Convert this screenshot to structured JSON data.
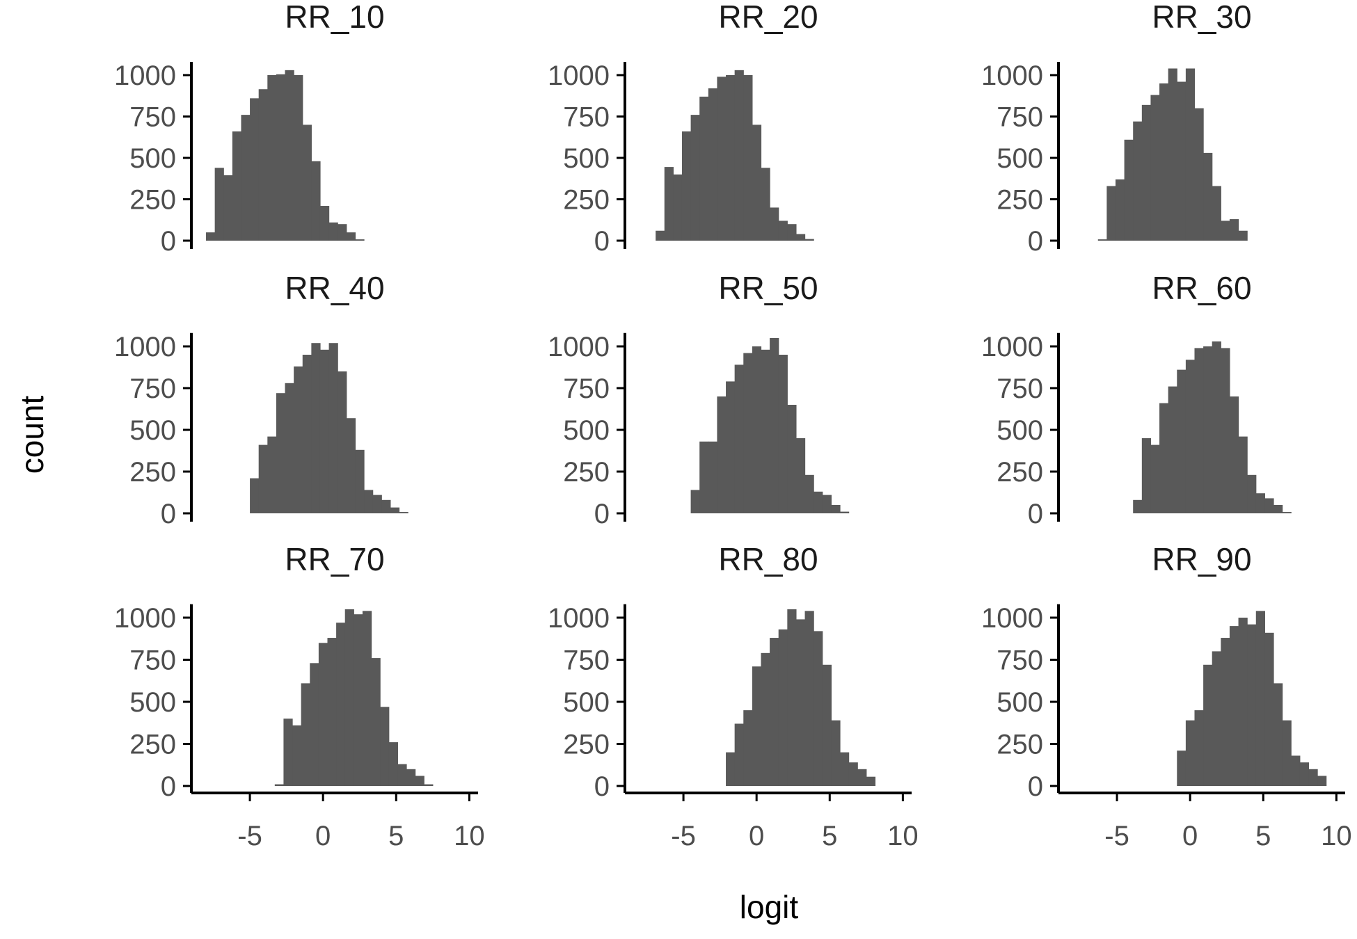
{
  "chart_data": {
    "type": "bar",
    "subtype": "faceted-histogram",
    "xlabel": "logit",
    "ylabel": "count",
    "bar_color": "#595959",
    "bin_width": 0.6,
    "y_ticks": [
      0,
      250,
      500,
      750,
      1000
    ],
    "y_tick_labels": [
      "0",
      "250",
      "500",
      "750",
      "1000"
    ],
    "x_ticks": [
      -5,
      0,
      5,
      10
    ],
    "x_tick_labels": [
      "-5",
      "0",
      "5",
      "10"
    ],
    "xlim": [
      -9,
      10.6
    ],
    "ylim": [
      0,
      1080
    ],
    "layout": {
      "nrow": 3,
      "ncol": 3
    },
    "panels": [
      {
        "title": "RR_10",
        "bin_start": -8.0,
        "counts": [
          50,
          440,
          395,
          660,
          760,
          860,
          915,
          1000,
          1005,
          1030,
          1000,
          700,
          480,
          210,
          110,
          100,
          50,
          8
        ]
      },
      {
        "title": "RR_20",
        "bin_start": -6.9,
        "counts": [
          60,
          445,
          400,
          660,
          760,
          870,
          920,
          990,
          1000,
          1030,
          1000,
          700,
          440,
          200,
          120,
          100,
          40,
          10
        ]
      },
      {
        "title": "RR_30",
        "bin_start": -6.3,
        "counts": [
          8,
          330,
          370,
          610,
          720,
          820,
          880,
          950,
          1040,
          960,
          1040,
          800,
          530,
          330,
          120,
          130,
          60
        ]
      },
      {
        "title": "RR_40",
        "bin_start": -5.0,
        "counts": [
          210,
          410,
          460,
          720,
          780,
          880,
          950,
          1020,
          980,
          1020,
          850,
          570,
          380,
          140,
          110,
          80,
          35,
          8
        ]
      },
      {
        "title": "RR_50",
        "bin_start": -4.5,
        "counts": [
          140,
          430,
          430,
          700,
          790,
          890,
          960,
          1000,
          980,
          1050,
          950,
          650,
          450,
          230,
          130,
          110,
          50,
          10
        ]
      },
      {
        "title": "RR_60",
        "bin_start": -3.9,
        "counts": [
          80,
          450,
          410,
          660,
          760,
          860,
          920,
          990,
          1000,
          1030,
          990,
          700,
          460,
          230,
          120,
          90,
          50,
          8
        ]
      },
      {
        "title": "RR_70",
        "bin_start": -3.3,
        "counts": [
          10,
          400,
          360,
          610,
          730,
          850,
          880,
          970,
          1050,
          1020,
          1040,
          760,
          470,
          260,
          130,
          100,
          60,
          10
        ]
      },
      {
        "title": "RR_80",
        "bin_start": -2.1,
        "counts": [
          200,
          370,
          450,
          710,
          790,
          880,
          930,
          1050,
          990,
          1040,
          920,
          720,
          390,
          200,
          140,
          100,
          55
        ]
      },
      {
        "title": "RR_90",
        "bin_start": -0.9,
        "counts": [
          210,
          390,
          450,
          720,
          800,
          880,
          950,
          1000,
          960,
          1040,
          910,
          610,
          390,
          180,
          140,
          100,
          60
        ]
      }
    ]
  }
}
